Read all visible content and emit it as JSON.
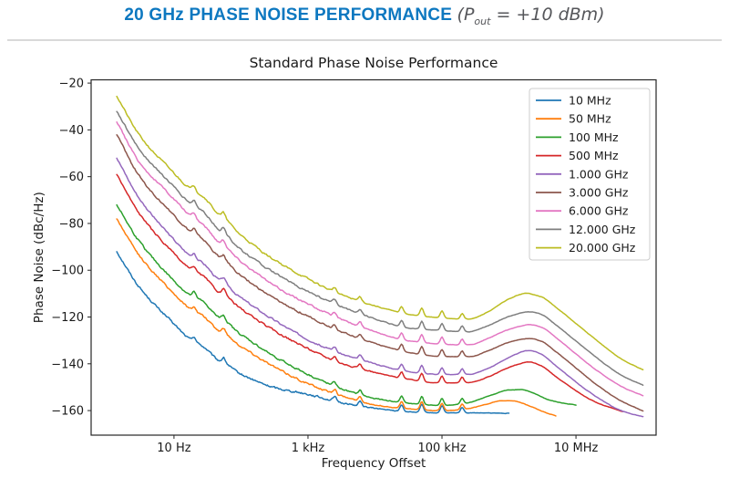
{
  "header": {
    "title": "20 GHz PHASE NOISE PERFORMANCE ",
    "condition_open": "(P",
    "condition_sub": "out",
    "condition_rest": " = +10 dBm)",
    "accent_color": "#0d78c0",
    "condition_color": "#55565a"
  },
  "chart_data": {
    "type": "line",
    "title": "Standard Phase Noise Performance",
    "xlabel": "Frequency Offset",
    "ylabel": "Phase Noise (dBc/Hz)",
    "x_scale": "log",
    "grid": false,
    "legend_position": "upper right",
    "xlim_hz": [
      0.58,
      157000000
    ],
    "ylim_dbc": [
      -170.5,
      -18.6
    ],
    "x_ticks": [
      {
        "value": 10,
        "label": "10 Hz"
      },
      {
        "value": 1000,
        "label": "1 kHz"
      },
      {
        "value": 100000,
        "label": "100 kHz"
      },
      {
        "value": 10000000,
        "label": "10 MHz"
      }
    ],
    "y_ticks": [
      {
        "value": -20,
        "label": "−20"
      },
      {
        "value": -40,
        "label": "−40"
      },
      {
        "value": -60,
        "label": "−60"
      },
      {
        "value": -80,
        "label": "−80"
      },
      {
        "value": -100,
        "label": "−100"
      },
      {
        "value": -120,
        "label": "−120"
      },
      {
        "value": -140,
        "label": "−140"
      },
      {
        "value": -160,
        "label": "−160"
      }
    ],
    "series": [
      {
        "name": "10 MHz",
        "color": "#1f77b4",
        "points": [
          [
            1.4,
            -92
          ],
          [
            3,
            -107
          ],
          [
            10,
            -123
          ],
          [
            30,
            -136.5
          ],
          [
            100,
            -144.5
          ],
          [
            300,
            -150
          ],
          [
            1000,
            -153
          ],
          [
            3000,
            -156.5
          ],
          [
            10000,
            -159
          ],
          [
            30000,
            -160.5
          ],
          [
            100000,
            -161
          ],
          [
            300000,
            -161
          ],
          [
            1000000,
            -161.2
          ]
        ]
      },
      {
        "name": "50 MHz",
        "color": "#ff7f0e",
        "points": [
          [
            1.4,
            -78
          ],
          [
            3,
            -93.5
          ],
          [
            10,
            -110
          ],
          [
            30,
            -123.5
          ],
          [
            100,
            -132.5
          ],
          [
            300,
            -141
          ],
          [
            1000,
            -148.5
          ],
          [
            3000,
            -153.5
          ],
          [
            10000,
            -157.5
          ],
          [
            30000,
            -159.2
          ],
          [
            100000,
            -160
          ],
          [
            200000,
            -159.6
          ],
          [
            500000,
            -157
          ],
          [
            800000,
            -155.8
          ],
          [
            1200000,
            -156
          ],
          [
            2000000,
            -158
          ],
          [
            3500000,
            -160.8
          ],
          [
            5000000,
            -162.3
          ]
        ]
      },
      {
        "name": "100 MHz",
        "color": "#2ca02c",
        "points": [
          [
            1.4,
            -72
          ],
          [
            3,
            -87.5
          ],
          [
            10,
            -104.5
          ],
          [
            30,
            -117.5
          ],
          [
            100,
            -127.5
          ],
          [
            300,
            -136.5
          ],
          [
            1000,
            -144.5
          ],
          [
            3000,
            -150.5
          ],
          [
            10000,
            -154.8
          ],
          [
            30000,
            -156.8
          ],
          [
            100000,
            -157.8
          ],
          [
            200000,
            -157.2
          ],
          [
            500000,
            -153.8
          ],
          [
            1000000,
            -151.2
          ],
          [
            1500000,
            -151
          ],
          [
            2500000,
            -153
          ],
          [
            4000000,
            -155.5
          ],
          [
            7000000,
            -157
          ],
          [
            10000000,
            -157.6
          ]
        ]
      },
      {
        "name": "500 MHz",
        "color": "#d62728",
        "points": [
          [
            1.4,
            -59
          ],
          [
            3,
            -75.5
          ],
          [
            10,
            -93
          ],
          [
            30,
            -106.5
          ],
          [
            100,
            -116.5
          ],
          [
            300,
            -125.5
          ],
          [
            1000,
            -133.5
          ],
          [
            3000,
            -139.5
          ],
          [
            10000,
            -143.7
          ],
          [
            30000,
            -146.5
          ],
          [
            100000,
            -148.2
          ],
          [
            250000,
            -148
          ],
          [
            500000,
            -145.5
          ],
          [
            1000000,
            -141.5
          ],
          [
            2000000,
            -139.3
          ],
          [
            3000000,
            -140.8
          ],
          [
            5000000,
            -145.5
          ],
          [
            10000000,
            -151.5
          ],
          [
            20000000,
            -156.5
          ],
          [
            35000000,
            -159
          ],
          [
            50000000,
            -160.5
          ]
        ]
      },
      {
        "name": "1.000 GHz",
        "color": "#9467bd",
        "points": [
          [
            1.4,
            -52
          ],
          [
            3,
            -69
          ],
          [
            10,
            -87
          ],
          [
            30,
            -101
          ],
          [
            100,
            -111.8
          ],
          [
            300,
            -121
          ],
          [
            1000,
            -129.5
          ],
          [
            3000,
            -135.5
          ],
          [
            10000,
            -140
          ],
          [
            30000,
            -143.2
          ],
          [
            100000,
            -144.6
          ],
          [
            250000,
            -144.5
          ],
          [
            500000,
            -141.8
          ],
          [
            1000000,
            -137.3
          ],
          [
            2000000,
            -134.3
          ],
          [
            3000000,
            -135.8
          ],
          [
            5000000,
            -140.8
          ],
          [
            10000000,
            -147.8
          ],
          [
            20000000,
            -154
          ],
          [
            50000000,
            -160.3
          ],
          [
            100000000,
            -162.6
          ]
        ]
      },
      {
        "name": "3.000 GHz",
        "color": "#8c564b",
        "points": [
          [
            1.4,
            -42
          ],
          [
            3,
            -59.5
          ],
          [
            10,
            -76.5
          ],
          [
            30,
            -91
          ],
          [
            100,
            -102.3
          ],
          [
            300,
            -111.8
          ],
          [
            1000,
            -119.6
          ],
          [
            3000,
            -126
          ],
          [
            10000,
            -131.2
          ],
          [
            30000,
            -135
          ],
          [
            100000,
            -136.9
          ],
          [
            250000,
            -137
          ],
          [
            500000,
            -134.3
          ],
          [
            1000000,
            -130.8
          ],
          [
            2000000,
            -129.2
          ],
          [
            3000000,
            -130.3
          ],
          [
            5000000,
            -134.8
          ],
          [
            10000000,
            -141.8
          ],
          [
            20000000,
            -148.8
          ],
          [
            50000000,
            -156.3
          ],
          [
            100000000,
            -160.2
          ]
        ]
      },
      {
        "name": "6.000 GHz",
        "color": "#e377c2",
        "points": [
          [
            1.4,
            -36.5
          ],
          [
            3,
            -53.5
          ],
          [
            10,
            -69.5
          ],
          [
            30,
            -84.5
          ],
          [
            100,
            -96.2
          ],
          [
            300,
            -106.2
          ],
          [
            1000,
            -114.4
          ],
          [
            3000,
            -120.8
          ],
          [
            10000,
            -126.2
          ],
          [
            30000,
            -130
          ],
          [
            100000,
            -131.6
          ],
          [
            250000,
            -131.9
          ],
          [
            500000,
            -129
          ],
          [
            1000000,
            -125.3
          ],
          [
            2000000,
            -123.3
          ],
          [
            3000000,
            -124.3
          ],
          [
            5000000,
            -128.8
          ],
          [
            10000000,
            -135.8
          ],
          [
            20000000,
            -142.6
          ],
          [
            50000000,
            -150
          ],
          [
            100000000,
            -153.6
          ]
        ]
      },
      {
        "name": "12.000 GHz",
        "color": "#7f7f7f",
        "points": [
          [
            1.4,
            -32
          ],
          [
            3,
            -48
          ],
          [
            10,
            -64.5
          ],
          [
            30,
            -79
          ],
          [
            100,
            -91.2
          ],
          [
            300,
            -100.8
          ],
          [
            1000,
            -109.1
          ],
          [
            3000,
            -115.3
          ],
          [
            10000,
            -120.7
          ],
          [
            30000,
            -124.6
          ],
          [
            100000,
            -125.8
          ],
          [
            250000,
            -126.3
          ],
          [
            500000,
            -123.5
          ],
          [
            1000000,
            -119.8
          ],
          [
            2000000,
            -117.8
          ],
          [
            3000000,
            -118.8
          ],
          [
            5000000,
            -123.3
          ],
          [
            10000000,
            -130.3
          ],
          [
            20000000,
            -137.3
          ],
          [
            50000000,
            -145.2
          ],
          [
            100000000,
            -149.1
          ]
        ]
      },
      {
        "name": "20.000 GHz",
        "color": "#bcbd22",
        "points": [
          [
            1.4,
            -25.5
          ],
          [
            3,
            -42
          ],
          [
            10,
            -58.5
          ],
          [
            30,
            -72.5
          ],
          [
            100,
            -85
          ],
          [
            300,
            -95.2
          ],
          [
            1000,
            -103.7
          ],
          [
            3000,
            -110.2
          ],
          [
            10000,
            -115.2
          ],
          [
            30000,
            -118.7
          ],
          [
            100000,
            -120.4
          ],
          [
            250000,
            -120.9
          ],
          [
            500000,
            -117.6
          ],
          [
            1000000,
            -112.3
          ],
          [
            1800000,
            -109.9
          ],
          [
            3000000,
            -111.3
          ],
          [
            5000000,
            -115.8
          ],
          [
            10000000,
            -122.8
          ],
          [
            20000000,
            -129.8
          ],
          [
            50000000,
            -138.3
          ],
          [
            100000000,
            -142.6
          ]
        ]
      }
    ],
    "artifacts": {
      "humps": [
        {
          "hz": 28,
          "amp_db": 3.0,
          "width_dec": 0.13
        },
        {
          "hz": 60,
          "amp_db": 1.5,
          "width_dec": 0.08
        }
      ],
      "spurs": [
        {
          "hz": 20,
          "amp_db": 2.2
        },
        {
          "hz": 55,
          "amp_db": 2.0
        },
        {
          "hz": 2500,
          "amp_db": 2.0
        },
        {
          "hz": 6000,
          "amp_db": 2.0
        },
        {
          "hz": 25000,
          "amp_db": 2.8
        },
        {
          "hz": 50000,
          "amp_db": 3.4
        },
        {
          "hz": 100000,
          "amp_db": 3.0
        },
        {
          "hz": 200000,
          "amp_db": 2.4
        }
      ],
      "spur_width_dec": 0.025
    }
  }
}
